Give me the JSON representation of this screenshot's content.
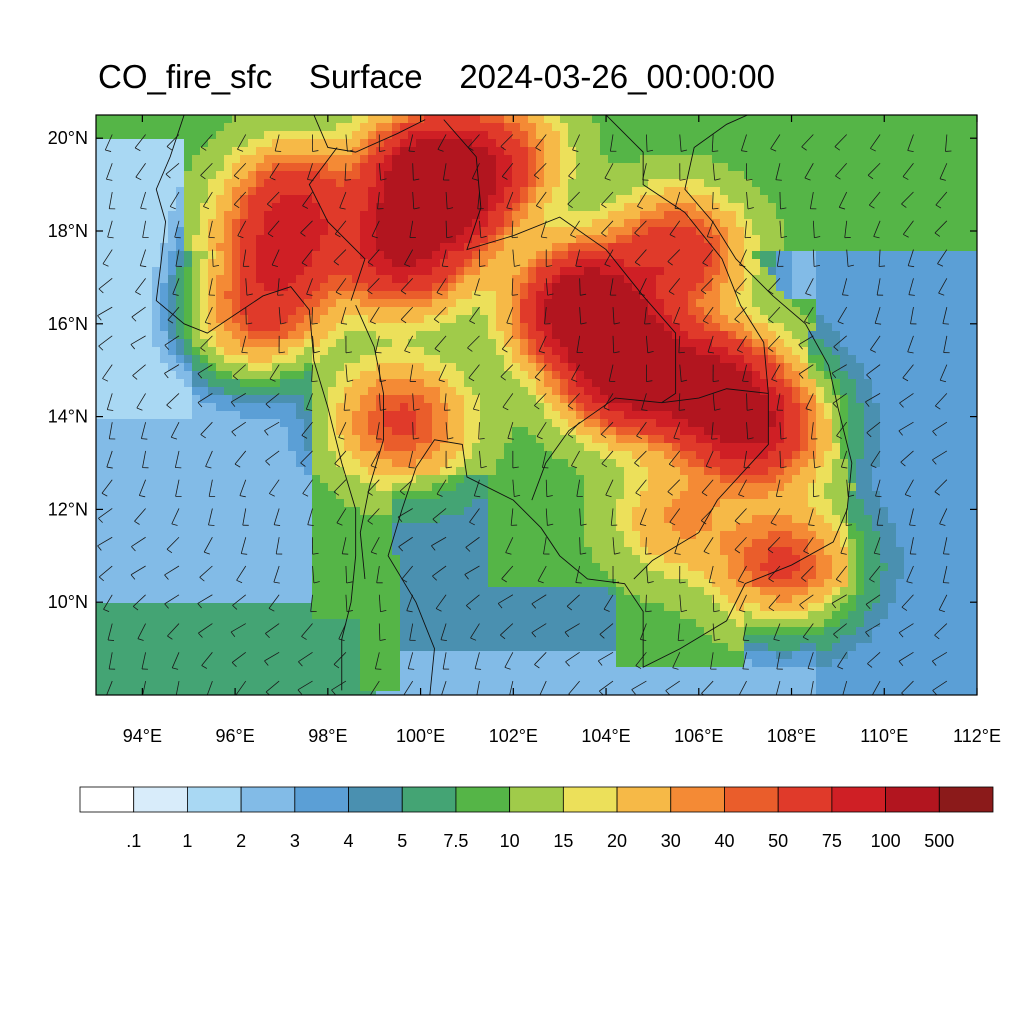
{
  "title": {
    "variable": "CO_fire_sfc",
    "level": "Surface",
    "time": "2024-03-26_00:00:00"
  },
  "map": {
    "lon_range": [
      93,
      112
    ],
    "lat_range": [
      8,
      20.5
    ],
    "lat_ticks": [
      {
        "value": 10,
        "label": "10°N"
      },
      {
        "value": 12,
        "label": "12°N"
      },
      {
        "value": 14,
        "label": "14°N"
      },
      {
        "value": 16,
        "label": "16°N"
      },
      {
        "value": 18,
        "label": "18°N"
      },
      {
        "value": 20,
        "label": "20°N"
      }
    ],
    "lon_ticks": [
      {
        "value": 94,
        "label": "94°E"
      },
      {
        "value": 96,
        "label": "96°E"
      },
      {
        "value": 98,
        "label": "98°E"
      },
      {
        "value": 100,
        "label": "100°E"
      },
      {
        "value": 102,
        "label": "102°E"
      },
      {
        "value": 104,
        "label": "104°E"
      },
      {
        "value": 106,
        "label": "106°E"
      },
      {
        "value": 108,
        "label": "108°E"
      },
      {
        "value": 110,
        "label": "110°E"
      },
      {
        "value": 112,
        "label": "112°E"
      }
    ],
    "field_centers": [
      {
        "lon": 100.2,
        "lat": 19.2,
        "value": 120
      },
      {
        "lon": 99.6,
        "lat": 17.6,
        "value": 90
      },
      {
        "lon": 97.3,
        "lat": 18.6,
        "value": 60
      },
      {
        "lon": 97.0,
        "lat": 17.4,
        "value": 55
      },
      {
        "lon": 103.6,
        "lat": 16.3,
        "value": 160
      },
      {
        "lon": 104.6,
        "lat": 15.0,
        "value": 140
      },
      {
        "lon": 106.3,
        "lat": 14.6,
        "value": 110
      },
      {
        "lon": 107.2,
        "lat": 13.7,
        "value": 80
      },
      {
        "lon": 105.5,
        "lat": 17.5,
        "value": 60
      },
      {
        "lon": 99.6,
        "lat": 13.9,
        "value": 45
      },
      {
        "lon": 100.6,
        "lat": 18.7,
        "value": 70
      },
      {
        "lon": 101.6,
        "lat": 19.6,
        "value": 45
      },
      {
        "lon": 107.8,
        "lat": 10.8,
        "value": 45
      },
      {
        "lon": 105.6,
        "lat": 11.8,
        "value": 22
      },
      {
        "lon": 96.5,
        "lat": 16.2,
        "value": 40
      }
    ],
    "wind_barbs": "on",
    "coastlines": "on",
    "borders": "on"
  },
  "colorbar": {
    "colors": [
      "#ffffff",
      "#d8ecfa",
      "#a9d8f3",
      "#82bbe7",
      "#5b9fd6",
      "#4a90b0",
      "#44a474",
      "#55b547",
      "#a0cb4a",
      "#ece05a",
      "#f6b947",
      "#f48a35",
      "#ea5d2b",
      "#e03a2a",
      "#cf1f25",
      "#b2151f",
      "#8b1a1a"
    ],
    "labels": [
      ".1",
      "1",
      "2",
      "3",
      "4",
      "5",
      "7.5",
      "10",
      "15",
      "20",
      "30",
      "40",
      "50",
      "75",
      "100",
      "500"
    ]
  }
}
